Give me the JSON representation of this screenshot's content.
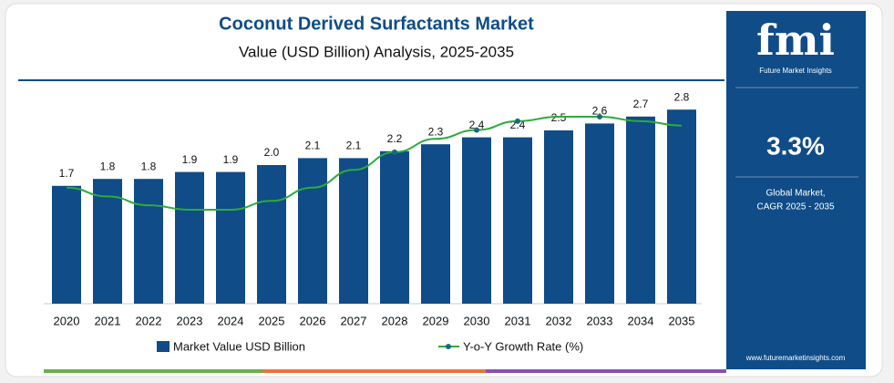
{
  "chart_data": {
    "type": "bar",
    "title": "Coconut Derived Surfactants Market",
    "subtitle": "Value (USD Billion) Analysis, 2025-2035",
    "categories": [
      "2020",
      "2021",
      "2022",
      "2023",
      "2024",
      "2025",
      "2026",
      "2027",
      "2028",
      "2029",
      "2030",
      "2031",
      "2032",
      "2033",
      "2034",
      "2035"
    ],
    "series": [
      {
        "name": "Market Value USD Billion",
        "color": "#0f4c88",
        "type": "bar",
        "values": [
          1.7,
          1.8,
          1.8,
          1.9,
          1.9,
          2.0,
          2.1,
          2.1,
          2.2,
          2.3,
          2.4,
          2.4,
          2.5,
          2.6,
          2.7,
          2.8
        ],
        "value_labels": [
          "1.7",
          "1.8",
          "1.8",
          "1.9",
          "1.9",
          "2.0",
          "2.1",
          "2.1",
          "2.2",
          "2.3",
          "2.4",
          "2.4",
          "2.5",
          "2.6",
          "2.7",
          "2.8"
        ]
      },
      {
        "name": "Y-o-Y Growth Rate (%)",
        "color": "#2eaa3c",
        "type": "line",
        "values": [
          3.1,
          2.9,
          2.7,
          2.6,
          2.6,
          2.8,
          3.1,
          3.5,
          3.9,
          4.2,
          4.4,
          4.6,
          4.7,
          4.7,
          4.6,
          4.5
        ]
      }
    ]
  },
  "sidebar": {
    "logo": "fmi",
    "brand": "Future Market Insights",
    "cagr": "3.3%",
    "cagr_label": [
      "Global Market,",
      "CAGR 2025 - 2035"
    ],
    "website": "www.futuremarketinsights.com"
  }
}
